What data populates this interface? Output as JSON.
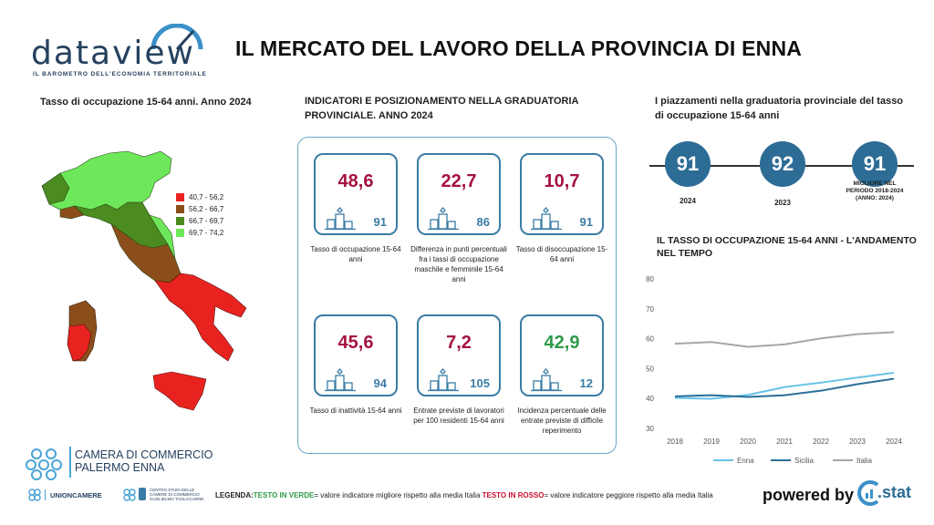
{
  "header": {
    "logo_word": "dataview",
    "logo_tagline": "IL BAROMETRO DELL'ECONOMIA TERRITORIALE",
    "title": "IL MERCATO DEL LAVORO DELLA PROVINCIA DI ENNA"
  },
  "map_section": {
    "title": "Tasso di occupazione 15-64 anni. Anno 2024",
    "legend": [
      {
        "label": "40,7 - 56,2",
        "color": "#e8231f"
      },
      {
        "label": "56,2 - 66,7",
        "color": "#8b4e1a"
      },
      {
        "label": "66,7 - 69,7",
        "color": "#4b8b1f"
      },
      {
        "label": "69,7 - 74,2",
        "color": "#6ee85a"
      }
    ]
  },
  "indicators": {
    "title_line1": "INDICATORI E POSIZIONAMENTO NELLA GRADUATORIA",
    "title_line2": "PROVINCIALE. ANNO 2024",
    "cards": [
      {
        "value": "48,6",
        "rank": "91",
        "label": "Tasso di occupazione 15-64 anni",
        "value_color": "#a5123f"
      },
      {
        "value": "22,7",
        "rank": "86",
        "label": "Differenza in punti percentuali fra i tassi di occupazione maschile e femminile 15-64 anni",
        "value_color": "#a5123f"
      },
      {
        "value": "10,7",
        "rank": "91",
        "label": "Tasso di disoccupazione 15-64 anni",
        "value_color": "#a5123f"
      },
      {
        "value": "45,6",
        "rank": "94",
        "label": "Tasso di inattività 15-64 anni",
        "value_color": "#a5123f"
      },
      {
        "value": "7,2",
        "rank": "105",
        "label": "Entrate previste di lavoratori per 100 residenti 15-64 anni",
        "value_color": "#a5123f"
      },
      {
        "value": "42,9",
        "rank": "12",
        "label": "Incidenza percentuale delle entrate previste di difficile reperimento",
        "value_color": "#2e9a48"
      }
    ]
  },
  "ranking": {
    "title_line1": "I piazzamenti nella graduatoria provinciale del tasso",
    "title_line2": "di occupazione 15-64 anni",
    "items": [
      {
        "rank": "91",
        "caption": "2024"
      },
      {
        "rank": "92",
        "caption": "2023"
      },
      {
        "rank": "91",
        "caption": "MIGLIORE NEL PERIODO 2018-2024 (ANNO: 2024)"
      }
    ]
  },
  "trend": {
    "title_line1": "IL TASSO DI OCCUPAZIONE 15-64 ANNI - L'ANDAMENTO",
    "title_line2": "NEL TEMPO"
  },
  "chart_data": {
    "type": "line",
    "title": "IL TASSO DI OCCUPAZIONE 15-64 ANNI - L'ANDAMENTO NEL TEMPO",
    "x": [
      "2018",
      "2019",
      "2020",
      "2021",
      "2022",
      "2023",
      "2024"
    ],
    "ylim": [
      30,
      80
    ],
    "yticks": [
      "30",
      "40",
      "50",
      "60",
      "70",
      "80"
    ],
    "grid": false,
    "legend_position": "bottom",
    "series": [
      {
        "name": "Enna",
        "color": "#69c3e6",
        "values": [
          40.2,
          39.9,
          41.2,
          43.8,
          45.3,
          47.0,
          48.6
        ]
      },
      {
        "name": "Sicilia",
        "color": "#2a6f97",
        "values": [
          40.7,
          41.1,
          40.5,
          41.1,
          42.6,
          44.8,
          46.6
        ]
      },
      {
        "name": "Italia",
        "color": "#a6a6a6",
        "values": [
          58.3,
          58.9,
          57.3,
          58.1,
          60.1,
          61.5,
          62.2
        ]
      }
    ]
  },
  "footer": {
    "chamber_line1": "CAMERA DI COMMERCIO",
    "chamber_line2": "PALERMO ENNA",
    "unioncamere": "UNIONCAMERE",
    "studies_line1": "CENTRO STUDI DELLE",
    "studies_line2": "CAMERE DI COMMERCIO",
    "studies_line3": "GUGLIELMO TAGLIACARNE",
    "legend_prefix": "LEGENDA:",
    "legend_green": "TESTO IN VERDE",
    "legend_green_desc": "= valore indicatore migliore rispetto alla media Italia ",
    "legend_red": "TESTO IN ROSSO",
    "legend_red_desc": "= valore indicatore peggiore rispetto alla media Italia",
    "powered_by": "powered by",
    "stat_brand": ".stat"
  }
}
